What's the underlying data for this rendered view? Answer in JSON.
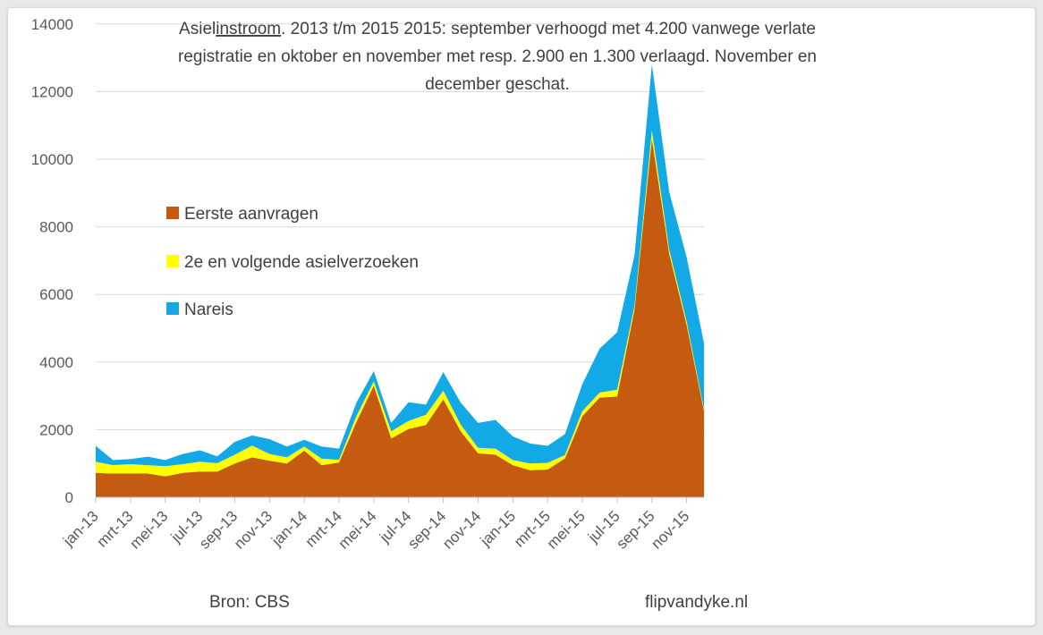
{
  "chart_data": {
    "type": "area",
    "stacked": true,
    "title": {
      "line1_prefix": "Asiel",
      "line1_underlined": "instroom",
      "line1_rest": ". 2013 t/m 2015   2015: september verhoogd met 4.200 vanwege verlate",
      "line2": "registratie en oktober en november met resp. 2.900 en 1.300 verlaagd. November en",
      "line3": "december geschat."
    },
    "ylim": [
      0,
      14000
    ],
    "y_ticks": [
      "0",
      "2000",
      "4000",
      "6000",
      "8000",
      "10000",
      "12000",
      "14000"
    ],
    "x_tick_labels": [
      "jan-13",
      "mrt-13",
      "mei-13",
      "jul-13",
      "sep-13",
      "nov-13",
      "jan-14",
      "mrt-14",
      "mei-14",
      "jul-14",
      "sep-14",
      "nov-14",
      "jan-15",
      "mrt-15",
      "mei-15",
      "jul-15",
      "sep-15",
      "nov-15"
    ],
    "months": [
      "jan-13",
      "feb-13",
      "mrt-13",
      "apr-13",
      "mei-13",
      "jun-13",
      "jul-13",
      "aug-13",
      "sep-13",
      "okt-13",
      "nov-13",
      "dec-13",
      "jan-14",
      "feb-14",
      "mrt-14",
      "apr-14",
      "mei-14",
      "jun-14",
      "jul-14",
      "aug-14",
      "sep-14",
      "okt-14",
      "nov-14",
      "dec-14",
      "jan-15",
      "feb-15",
      "mrt-15",
      "apr-15",
      "mei-15",
      "jun-15",
      "jul-15",
      "aug-15",
      "sep-15",
      "okt-15",
      "nov-15",
      "dec-15"
    ],
    "grid": true,
    "legend_position": "left-middle",
    "series": [
      {
        "name": "Eerste aanvragen",
        "color": "#c55a11",
        "values": [
          720,
          700,
          700,
          700,
          620,
          720,
          760,
          760,
          1000,
          1180,
          1080,
          1000,
          1380,
          950,
          1030,
          2230,
          3300,
          1740,
          2020,
          2140,
          2900,
          1950,
          1300,
          1260,
          950,
          800,
          820,
          1150,
          2400,
          2950,
          2980,
          5550,
          10600,
          7200,
          5100,
          2540
        ]
      },
      {
        "name": "2e en volgende asielverzoeken",
        "color": "#ffff00",
        "values": [
          330,
          250,
          280,
          250,
          300,
          260,
          290,
          250,
          260,
          350,
          200,
          180,
          120,
          190,
          80,
          170,
          130,
          210,
          240,
          300,
          250,
          200,
          160,
          180,
          150,
          200,
          200,
          100,
          150,
          150,
          200,
          110,
          250,
          120,
          100,
          60
        ]
      },
      {
        "name": "Nareis",
        "color": "#13a9e6",
        "values": [
          470,
          150,
          150,
          250,
          180,
          300,
          340,
          200,
          380,
          300,
          440,
          320,
          200,
          360,
          330,
          400,
          300,
          250,
          550,
          300,
          550,
          650,
          740,
          850,
          700,
          590,
          500,
          620,
          800,
          1300,
          1700,
          1500,
          1950,
          1700,
          1900,
          1950
        ]
      }
    ],
    "source": "Bron: CBS",
    "credit": "flipvandyke.nl"
  }
}
